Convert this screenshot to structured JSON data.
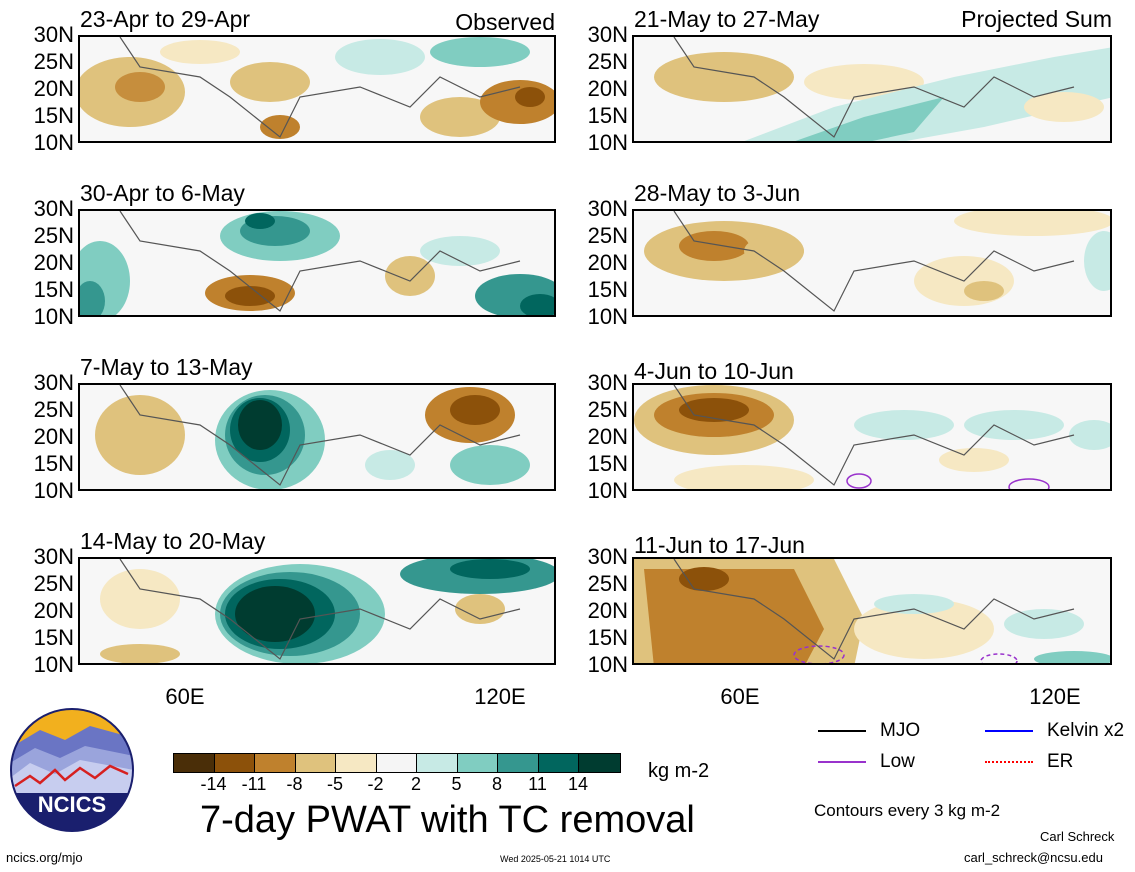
{
  "panels": [
    {
      "title": "23-Apr to 29-Apr",
      "tag": "Observed"
    },
    {
      "title": "21-May to 27-May",
      "tag": "Projected Sum"
    },
    {
      "title": "30-Apr to 6-May",
      "tag": ""
    },
    {
      "title": "28-May to 3-Jun",
      "tag": ""
    },
    {
      "title": "7-May to 13-May",
      "tag": ""
    },
    {
      "title": "4-Jun to 10-Jun",
      "tag": ""
    },
    {
      "title": "14-May to 20-May",
      "tag": ""
    },
    {
      "title": "11-Jun to 17-Jun",
      "tag": ""
    }
  ],
  "lat_labels": [
    "30N",
    "25N",
    "20N",
    "15N",
    "10N"
  ],
  "lon_labels": [
    "60E",
    "120E"
  ],
  "colorbar": {
    "colors": [
      "#4a2e08",
      "#8c510a",
      "#bf812d",
      "#dfc27d",
      "#f6e8c3",
      "#f5f5f5",
      "#c7eae5",
      "#80cdc1",
      "#35978f",
      "#01665e",
      "#003c30"
    ],
    "ticks": [
      "-14",
      "-11",
      "-8",
      "-5",
      "-2",
      "2",
      "5",
      "8",
      "11",
      "14"
    ],
    "units": "kg m-2"
  },
  "title": "7-day PWAT with TC removal",
  "legend": {
    "items": [
      {
        "label": "MJO",
        "color": "#000000",
        "style": "solid"
      },
      {
        "label": "Kelvin x2",
        "color": "#0000ff",
        "style": "solid"
      },
      {
        "label": "Low",
        "color": "#9932cc",
        "style": "solid"
      },
      {
        "label": "ER",
        "color": "#ff0000",
        "style": "dotted"
      }
    ],
    "contours_note": "Contours every 3 kg m-2"
  },
  "logo": {
    "text": "NCICS"
  },
  "footer": {
    "left": "ncics.org/mjo",
    "center": "Wed 2025-05-21 1014 UTC",
    "author": "Carl Schreck",
    "email": "carl_schreck@ncsu.edu"
  }
}
